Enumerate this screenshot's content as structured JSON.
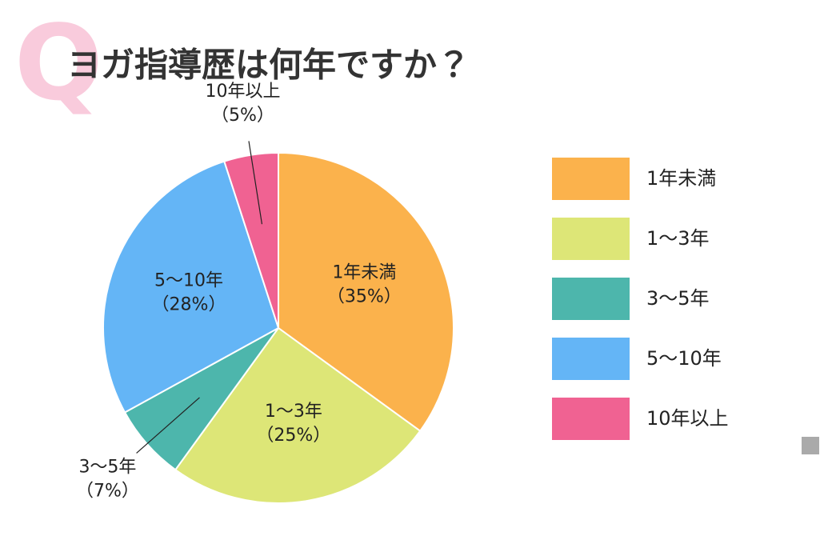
{
  "chart_data": {
    "type": "pie",
    "badge": "Q",
    "title": "ヨガ指導歴は何年ですか？",
    "categories": [
      "1年未満",
      "1〜3年",
      "3〜5年",
      "5〜10年",
      "10年以上"
    ],
    "values": [
      35,
      25,
      7,
      28,
      5
    ],
    "value_labels": [
      "（35%）",
      "（25%）",
      "（7%）",
      "（28%）",
      "（5%）"
    ],
    "colors": [
      "#fbb24c",
      "#dde677",
      "#4db6ac",
      "#64b5f6",
      "#f06292"
    ],
    "legend_position": "right"
  }
}
